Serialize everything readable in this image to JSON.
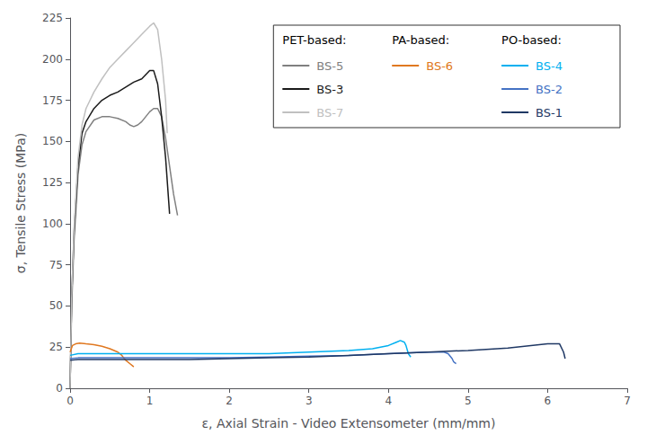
{
  "chart_data": {
    "type": "line",
    "xlabel": "ε, Axial Strain - Video Extensometer (mm/mm)",
    "ylabel": "σ, Tensile Stress (MPa)",
    "xlim": [
      0,
      7
    ],
    "ylim": [
      0,
      225
    ],
    "xticks": [
      0,
      1,
      2,
      3,
      4,
      5,
      6,
      7
    ],
    "yticks": [
      0,
      25,
      50,
      75,
      100,
      125,
      150,
      175,
      200,
      225
    ],
    "grid": false,
    "legend": "upper right",
    "legend_groups": [
      {
        "header": "PET-based:",
        "items": [
          "BS-5",
          "BS-3",
          "BS-7"
        ]
      },
      {
        "header": "PA-based:",
        "items": [
          "BS-6"
        ]
      },
      {
        "header": "PO-based:",
        "items": [
          "BS-4",
          "BS-2",
          "BS-1"
        ]
      }
    ],
    "series": [
      {
        "name": "BS-5",
        "color": "#808080",
        "x": [
          0.0,
          0.02,
          0.05,
          0.1,
          0.15,
          0.2,
          0.3,
          0.4,
          0.5,
          0.6,
          0.7,
          0.75,
          0.8,
          0.85,
          0.9,
          0.95,
          1.0,
          1.05,
          1.1,
          1.15,
          1.2,
          1.25,
          1.3,
          1.35
        ],
        "values": [
          0,
          50,
          90,
          130,
          148,
          156,
          163,
          165,
          165,
          164,
          162,
          160,
          159,
          160,
          162,
          165,
          168,
          170,
          170,
          165,
          152,
          135,
          118,
          105
        ]
      },
      {
        "name": "BS-3",
        "color": "#1a1a1a",
        "x": [
          0.0,
          0.02,
          0.05,
          0.1,
          0.15,
          0.2,
          0.3,
          0.4,
          0.5,
          0.6,
          0.7,
          0.8,
          0.9,
          1.0,
          1.05,
          1.1,
          1.15,
          1.2,
          1.25
        ],
        "values": [
          0,
          55,
          95,
          135,
          155,
          162,
          170,
          175,
          178,
          180,
          183,
          186,
          188,
          193,
          193,
          185,
          165,
          140,
          106
        ]
      },
      {
        "name": "BS-7",
        "color": "#c0c0c0",
        "x": [
          0.0,
          0.02,
          0.05,
          0.1,
          0.15,
          0.2,
          0.3,
          0.4,
          0.5,
          0.6,
          0.7,
          0.8,
          0.9,
          1.0,
          1.05,
          1.1,
          1.15,
          1.2,
          1.22
        ],
        "values": [
          0,
          55,
          98,
          140,
          160,
          170,
          180,
          188,
          195,
          200,
          205,
          210,
          215,
          220,
          222,
          218,
          200,
          175,
          155
        ]
      },
      {
        "name": "BS-6",
        "color": "#e07820",
        "x": [
          0.0,
          0.03,
          0.07,
          0.12,
          0.2,
          0.3,
          0.4,
          0.5,
          0.6,
          0.65,
          0.68,
          0.7,
          0.75,
          0.8
        ],
        "values": [
          22,
          26,
          27,
          27.5,
          27,
          26.5,
          25.5,
          24,
          22,
          20,
          18,
          17,
          15,
          13
        ]
      },
      {
        "name": "BS-4",
        "color": "#00b0f0",
        "x": [
          0.0,
          0.1,
          0.3,
          0.6,
          1.0,
          1.5,
          2.0,
          2.5,
          3.0,
          3.5,
          3.8,
          4.0,
          4.1,
          4.15,
          4.2,
          4.22,
          4.25,
          4.28
        ],
        "values": [
          20,
          21,
          21,
          21,
          21,
          21,
          21,
          21,
          22,
          23,
          24,
          26,
          28,
          29,
          28,
          26,
          21,
          19
        ]
      },
      {
        "name": "BS-2",
        "color": "#4472c4",
        "x": [
          0.0,
          0.1,
          0.3,
          0.6,
          1.0,
          1.5,
          2.0,
          2.5,
          3.0,
          3.5,
          4.0,
          4.5,
          4.7,
          4.75,
          4.8,
          4.82,
          4.85
        ],
        "values": [
          18,
          18.5,
          18.5,
          18.5,
          18.5,
          18.5,
          18.5,
          19,
          19.5,
          20,
          21,
          22,
          22,
          21,
          18,
          16,
          15
        ]
      },
      {
        "name": "BS-1",
        "color": "#1f3864",
        "x": [
          0.0,
          0.1,
          0.3,
          0.6,
          1.0,
          1.5,
          2.0,
          2.5,
          3.0,
          3.5,
          4.0,
          4.5,
          5.0,
          5.5,
          6.0,
          6.15,
          6.2,
          6.22
        ],
        "values": [
          17,
          17.5,
          17.5,
          17.5,
          17.5,
          17.5,
          18,
          18.5,
          19,
          20,
          21,
          22,
          23,
          24.5,
          27,
          27,
          22,
          18
        ]
      }
    ]
  }
}
